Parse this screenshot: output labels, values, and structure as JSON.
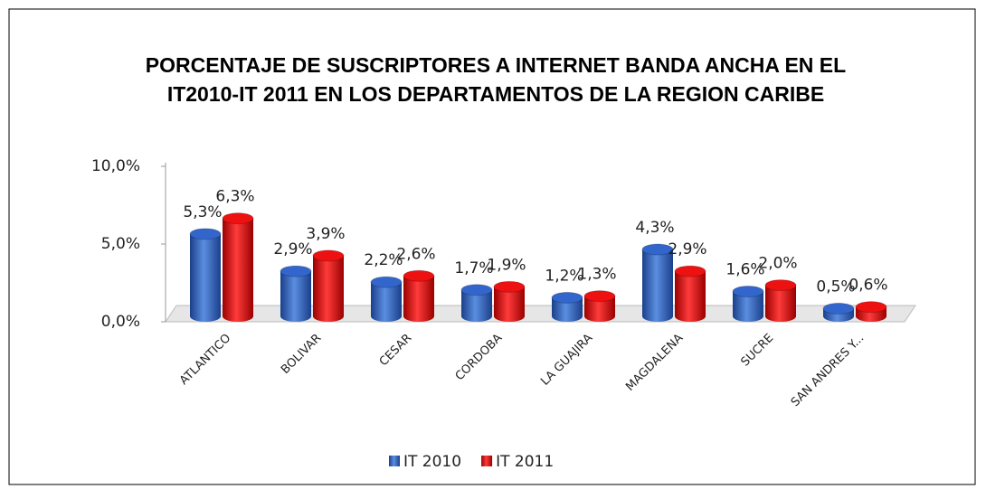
{
  "chart_data": {
    "type": "bar",
    "title": [
      "PORCENTAJE DE SUSCRIPTORES A INTERNET BANDA ANCHA  EN EL",
      "IT2010-IT 2011 EN LOS DEPARTAMENTOS DE LA REGION CARIBE"
    ],
    "categories": [
      "ATLANTICO",
      "BOLIVAR",
      "CESAR",
      "CORDOBA",
      "LA GUAJIRA",
      "MAGDALENA",
      "SUCRE",
      "SAN ANDRES Y..."
    ],
    "series": [
      {
        "name": "IT 2010",
        "color": "#3366cc",
        "values": [
          5.3,
          2.9,
          2.2,
          1.7,
          1.2,
          4.3,
          1.6,
          0.5
        ],
        "value_labels": [
          "5,3%",
          "2,9%",
          "2,2%",
          "1,7%",
          "1,2%",
          "4,3%",
          "1,6%",
          "0,5%"
        ]
      },
      {
        "name": "IT 2011",
        "color": "#ee1111",
        "values": [
          6.3,
          3.9,
          2.6,
          1.9,
          1.3,
          2.9,
          2.0,
          0.6
        ],
        "value_labels": [
          "6,3%",
          "3,9%",
          "2,6%",
          "1,9%",
          "1,3%",
          "2,9%",
          "2,0%",
          "0,6%"
        ]
      }
    ],
    "ylim": [
      0,
      10
    ],
    "yticks": [
      {
        "value": 0,
        "label": "0,0%"
      },
      {
        "value": 5,
        "label": "5,0%"
      },
      {
        "value": 10,
        "label": "10,0%"
      }
    ],
    "legend": "bottom"
  }
}
